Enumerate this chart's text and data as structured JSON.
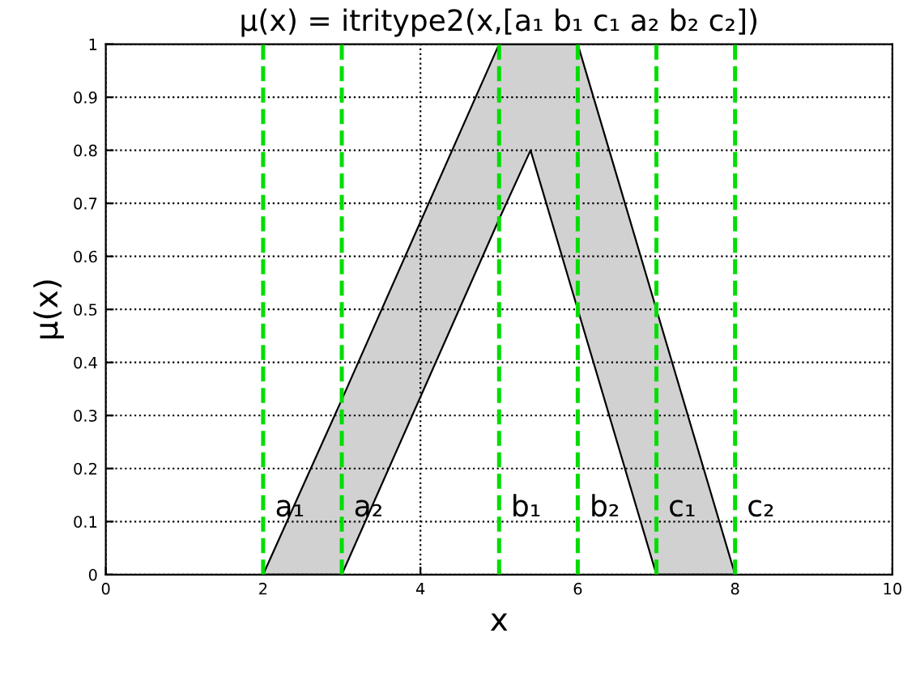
{
  "chart_data": {
    "type": "line",
    "title": "μ(x) = itritype2(x,[a₁ b₁ c₁ a₂ b₂ c₂])",
    "xlabel": "x",
    "ylabel": "μ(x)",
    "series": [
      {
        "color": "#000000",
        "x": [
          2,
          3,
          5,
          5.4,
          6,
          7,
          8
        ],
        "values": [
          0,
          0.33,
          1,
          1,
          1,
          0.5,
          0
        ],
        "lower": [
          0,
          0,
          0.67,
          0.8,
          0.5,
          0,
          0
        ],
        "upper": [
          0,
          0.33,
          1,
          1,
          1,
          0.5,
          0
        ]
      },
      {
        "color": "#000000",
        "x": [
          2,
          3,
          5,
          5.4,
          6,
          7,
          8
        ],
        "values": [
          0,
          0,
          0.67,
          0.8,
          0.5,
          0,
          0
        ]
      }
    ],
    "ref_lines": [
      {
        "axis": "x",
        "value": 2,
        "label": "a₁",
        "color": "#00dd00",
        "line_style": "dashed"
      },
      {
        "axis": "x",
        "value": 3,
        "label": "a₂",
        "color": "#00dd00",
        "line_style": "dashed"
      },
      {
        "axis": "x",
        "value": 5,
        "label": "b₁",
        "color": "#00dd00",
        "line_style": "dashed"
      },
      {
        "axis": "x",
        "value": 6,
        "label": "b₂",
        "color": "#00dd00",
        "line_style": "dashed"
      },
      {
        "axis": "x",
        "value": 7,
        "label": "c₁",
        "color": "#00dd00",
        "line_style": "dashed"
      },
      {
        "axis": "x",
        "value": 8,
        "label": "c₂",
        "color": "#00dd00",
        "line_style": "dashed"
      }
    ],
    "xlim": [
      0,
      10
    ],
    "xticks": [
      0,
      2,
      4,
      6,
      8,
      10
    ],
    "ylim": [
      0,
      1
    ],
    "yticks": [
      0,
      0.1,
      0.2,
      0.3,
      0.4,
      0.5,
      0.6,
      0.7,
      0.8,
      0.9,
      1
    ],
    "grid": true,
    "legend": false
  }
}
